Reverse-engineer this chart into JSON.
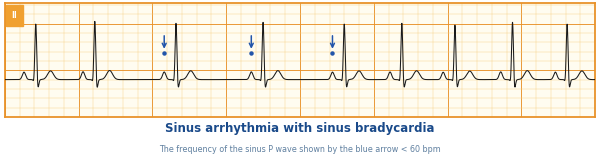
{
  "title": "Sinus arrhythmia with sinus bradycardia",
  "subtitle": "The frequency of the sinus P wave shown by the blue arrow < 60 bpm",
  "title_color": "#1a4a8a",
  "subtitle_color": "#6080a0",
  "title_fontsize": 8.5,
  "subtitle_fontsize": 5.8,
  "ecg_color": "#1a1a1a",
  "grid_major_color": "#e8922a",
  "grid_minor_color": "#f7d080",
  "background_color": "#fffcf0",
  "border_color": "#e8922a",
  "label_box_color": "#f0a030",
  "label_text": "II",
  "arrow_color": "#2255aa",
  "ecg_linewidth": 0.75
}
